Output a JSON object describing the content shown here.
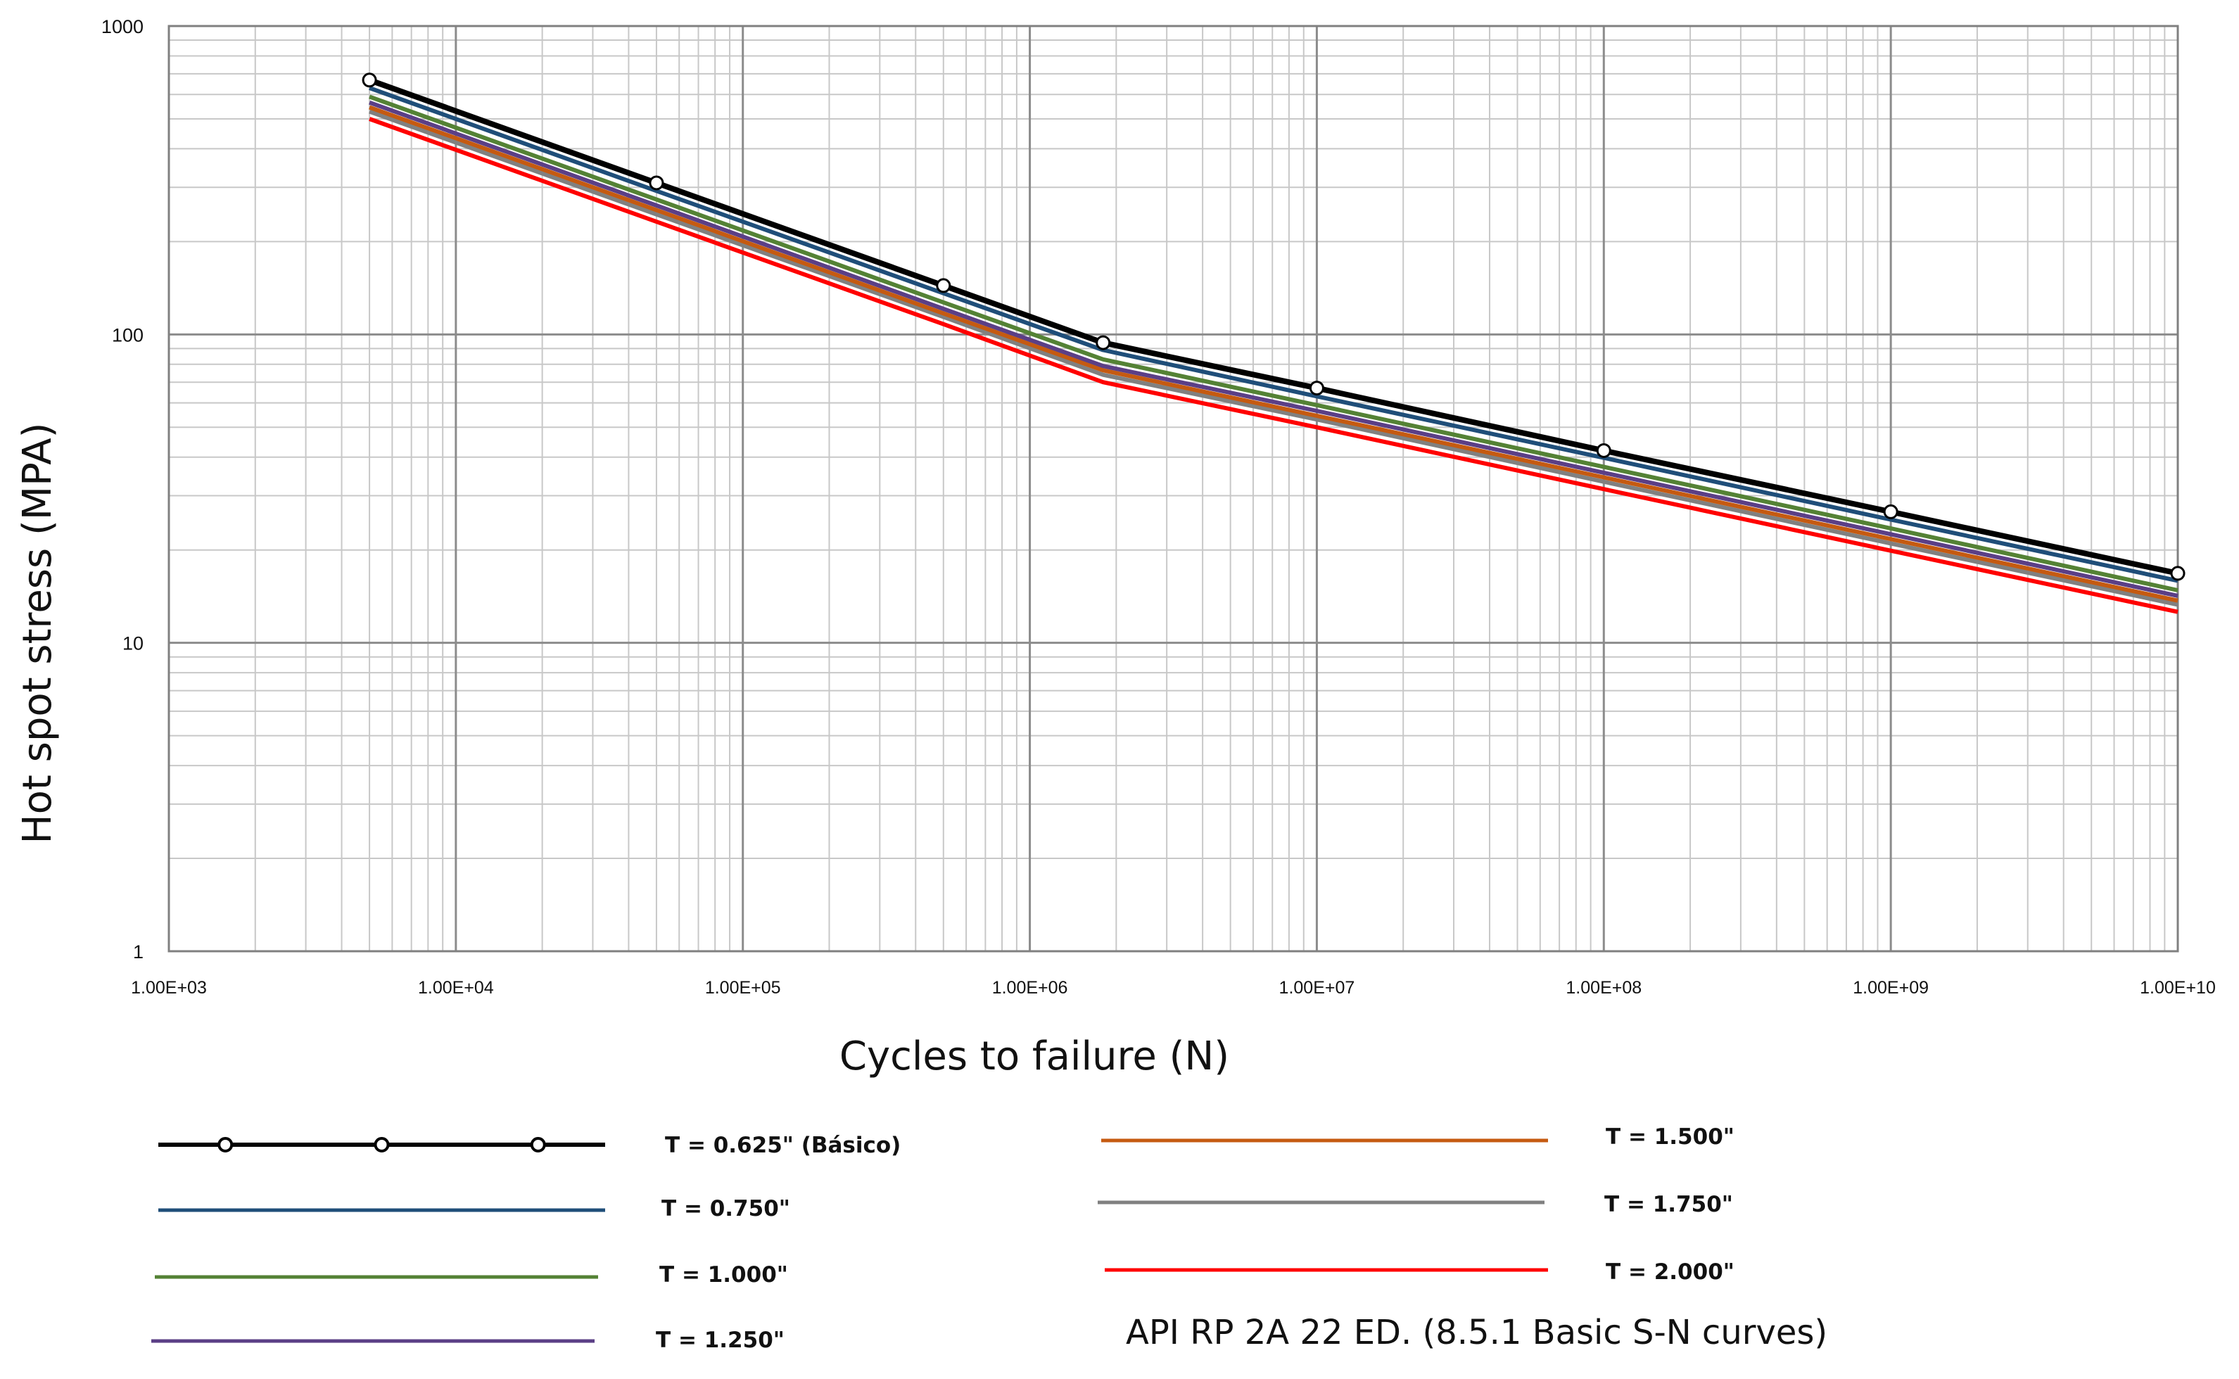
{
  "chart_data": {
    "type": "line",
    "x_scale": "log",
    "y_scale": "log",
    "xlim": [
      1000,
      10000000000
    ],
    "ylim": [
      1,
      1000
    ],
    "xlabel": "Cycles to failure (N)",
    "ylabel": "Hot spot stress (MPA)",
    "grid": true,
    "x_ticks": [
      1000,
      10000,
      100000,
      1000000,
      10000000,
      100000000,
      1000000000,
      10000000000
    ],
    "x_tick_labels": [
      "1.00E+03",
      "1.00E+04",
      "1.00E+05",
      "1.00E+06",
      "1.00E+07",
      "1.00E+08",
      "1.00E+09",
      "1.00E+10"
    ],
    "y_ticks": [
      1,
      10,
      100,
      1000
    ],
    "y_tick_labels": [
      "1",
      "10",
      "100",
      "1000"
    ],
    "x": [
      5000,
      50000,
      500000,
      1800000,
      10000000,
      100000000,
      1000000000,
      10000000000
    ],
    "series": [
      {
        "name": "T = 0.625\" (Básico)",
        "color": "#000000",
        "markers": true,
        "values": [
          668,
          310,
          144,
          94,
          67,
          42,
          26.6,
          16.8
        ]
      },
      {
        "name": "T = 0.750\"",
        "color": "#1F4E79",
        "markers": false,
        "values": [
          630,
          292,
          136,
          89,
          63,
          39.8,
          25.1,
          15.9
        ]
      },
      {
        "name": "T = 1.000\"",
        "color": "#548235",
        "markers": false,
        "values": [
          590,
          274,
          127,
          83,
          59,
          37.2,
          23.5,
          14.8
        ]
      },
      {
        "name": "T = 1.250\"",
        "color": "#5B3F86",
        "markers": false,
        "values": [
          565,
          262,
          121,
          79,
          56.5,
          35.6,
          22.5,
          14.2
        ]
      },
      {
        "name": "T = 1.500\"",
        "color": "#C55A11",
        "markers": false,
        "values": [
          545,
          253,
          117,
          76.5,
          54.5,
          34.4,
          21.7,
          13.7
        ]
      },
      {
        "name": "T = 1.750\"",
        "color": "#808080",
        "markers": false,
        "values": [
          528,
          245,
          114,
          74,
          53,
          33.3,
          21,
          13.3
        ]
      },
      {
        "name": "T = 2.000\"",
        "color": "#FF0000",
        "markers": false,
        "values": [
          500,
          232,
          108,
          70,
          50,
          31.5,
          19.9,
          12.6
        ]
      }
    ],
    "legend_position": "bottom",
    "annotation": "API RP 2A 22 ED. (8.5.1 Basic S-N curves)"
  }
}
